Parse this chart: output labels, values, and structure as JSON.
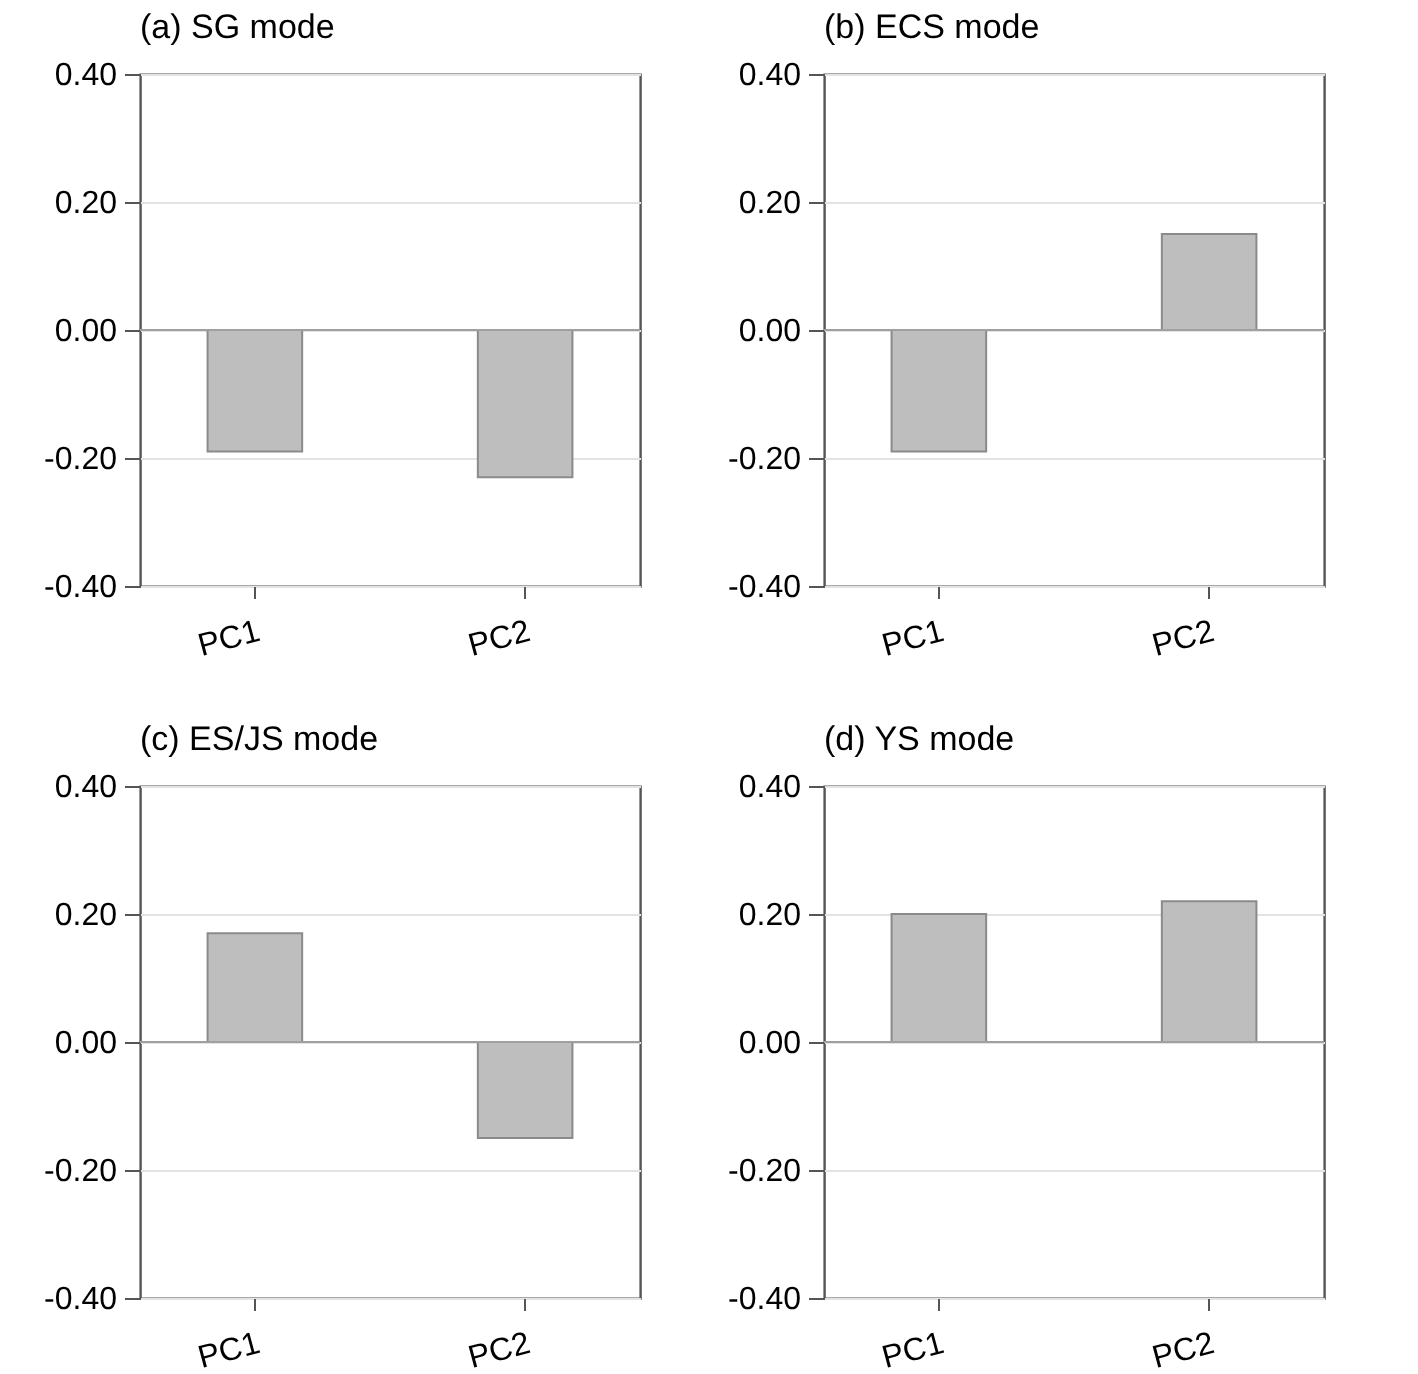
{
  "chart_data": [
    {
      "type": "bar",
      "title": "(a) SG mode",
      "categories": [
        "PC1",
        "PC2"
      ],
      "values": [
        -0.19,
        -0.23
      ],
      "color": "#bebebe",
      "ylim": [
        -0.4,
        0.4
      ],
      "yticks": [
        {
          "value": -0.4,
          "label": "-0.40"
        },
        {
          "value": -0.2,
          "label": "-0.20"
        },
        {
          "value": 0,
          "label": "0.00"
        },
        {
          "value": 0.2,
          "label": "0.20"
        },
        {
          "value": 0.4,
          "label": "0.40"
        }
      ],
      "grid": "y",
      "ref_lines": [
        {
          "axis": "y",
          "value": 0,
          "color": "#a0a0a0"
        }
      ]
    },
    {
      "type": "bar",
      "title": "(b) ECS mode",
      "categories": [
        "PC1",
        "PC2"
      ],
      "values": [
        -0.19,
        0.15
      ],
      "color": "#bebebe",
      "ylim": [
        -0.4,
        0.4
      ],
      "yticks": [
        {
          "value": -0.4,
          "label": "-0.40"
        },
        {
          "value": -0.2,
          "label": "-0.20"
        },
        {
          "value": 0,
          "label": "0.00"
        },
        {
          "value": 0.2,
          "label": "0.20"
        },
        {
          "value": 0.4,
          "label": "0.40"
        }
      ],
      "grid": "y",
      "ref_lines": [
        {
          "axis": "y",
          "value": 0,
          "color": "#a0a0a0"
        }
      ]
    },
    {
      "type": "bar",
      "title": "(c) ES/JS mode",
      "categories": [
        "PC1",
        "PC2"
      ],
      "values": [
        0.17,
        -0.15
      ],
      "color": "#bebebe",
      "ylim": [
        -0.4,
        0.4
      ],
      "yticks": [
        {
          "value": -0.4,
          "label": "-0.40"
        },
        {
          "value": -0.2,
          "label": "-0.20"
        },
        {
          "value": 0,
          "label": "0.00"
        },
        {
          "value": 0.2,
          "label": "0.20"
        },
        {
          "value": 0.4,
          "label": "0.40"
        }
      ],
      "grid": "y",
      "ref_lines": [
        {
          "axis": "y",
          "value": 0,
          "color": "#a0a0a0"
        }
      ]
    },
    {
      "type": "bar",
      "title": "(d) YS mode",
      "categories": [
        "PC1",
        "PC2"
      ],
      "values": [
        0.2,
        0.22
      ],
      "color": "#bebebe",
      "ylim": [
        -0.4,
        0.4
      ],
      "yticks": [
        {
          "value": -0.4,
          "label": "-0.40"
        },
        {
          "value": -0.2,
          "label": "-0.20"
        },
        {
          "value": 0,
          "label": "0.00"
        },
        {
          "value": 0.2,
          "label": "0.20"
        },
        {
          "value": 0.4,
          "label": "0.40"
        }
      ],
      "grid": "y",
      "ref_lines": [
        {
          "axis": "y",
          "value": 0,
          "color": "#a0a0a0"
        }
      ]
    }
  ]
}
